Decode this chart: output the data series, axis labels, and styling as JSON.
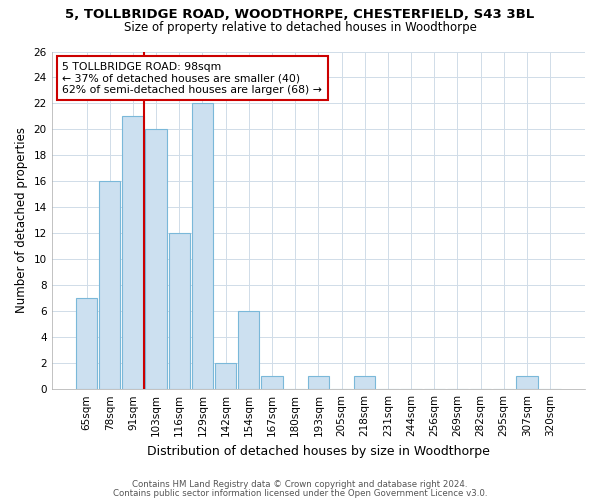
{
  "title1": "5, TOLLBRIDGE ROAD, WOODTHORPE, CHESTERFIELD, S43 3BL",
  "title2": "Size of property relative to detached houses in Woodthorpe",
  "xlabel": "Distribution of detached houses by size in Woodthorpe",
  "ylabel": "Number of detached properties",
  "bar_labels": [
    "65sqm",
    "78sqm",
    "91sqm",
    "103sqm",
    "116sqm",
    "129sqm",
    "142sqm",
    "154sqm",
    "167sqm",
    "180sqm",
    "193sqm",
    "205sqm",
    "218sqm",
    "231sqm",
    "244sqm",
    "256sqm",
    "269sqm",
    "282sqm",
    "295sqm",
    "307sqm",
    "320sqm"
  ],
  "bar_values": [
    7,
    16,
    21,
    20,
    12,
    22,
    2,
    6,
    1,
    0,
    1,
    0,
    1,
    0,
    0,
    0,
    0,
    0,
    0,
    1,
    0
  ],
  "bar_color": "#cce0f0",
  "bar_edgecolor": "#7ab8d9",
  "annotation_line1": "5 TOLLBRIDGE ROAD: 98sqm",
  "annotation_line2": "← 37% of detached houses are smaller (40)",
  "annotation_line3": "62% of semi-detached houses are larger (68) →",
  "annotation_box_color": "#ffffff",
  "annotation_box_edgecolor": "#cc0000",
  "red_line_color": "#cc0000",
  "ylim": [
    0,
    26
  ],
  "yticks": [
    0,
    2,
    4,
    6,
    8,
    10,
    12,
    14,
    16,
    18,
    20,
    22,
    24,
    26
  ],
  "footer1": "Contains HM Land Registry data © Crown copyright and database right 2024.",
  "footer2": "Contains public sector information licensed under the Open Government Licence v3.0.",
  "background_color": "#ffffff",
  "grid_color": "#d0dce8"
}
